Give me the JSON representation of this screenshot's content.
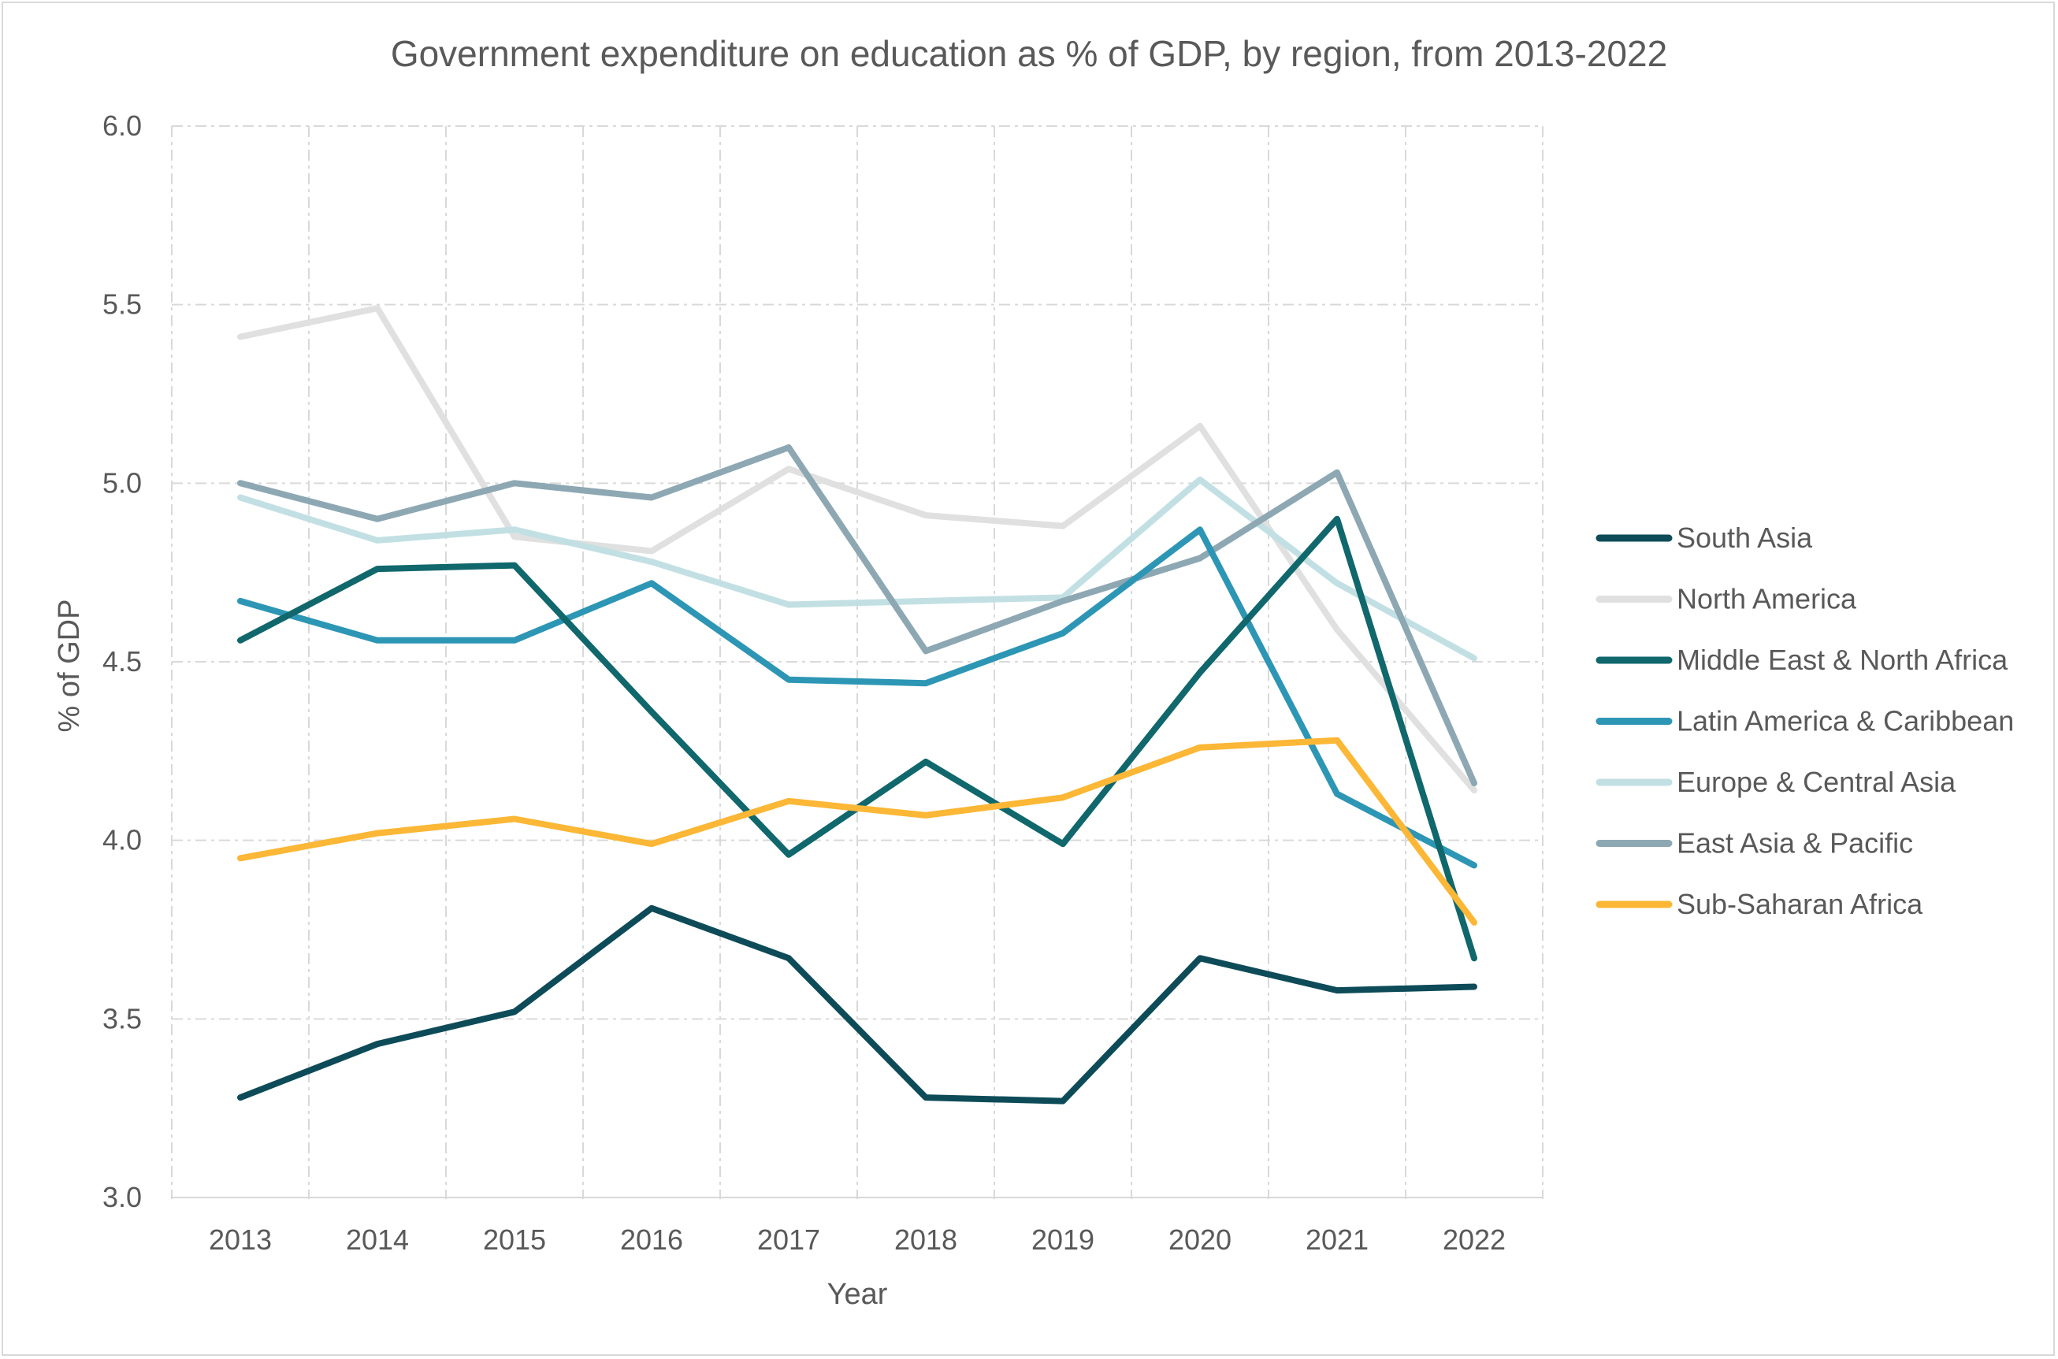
{
  "chart_data": {
    "type": "line",
    "title": "Government expenditure on education as % of GDP, by region, from 2013-2022",
    "xlabel": "Year",
    "ylabel": "% of GDP",
    "ylim": [
      3.0,
      6.0
    ],
    "yticks": [
      "3.0",
      "3.5",
      "4.0",
      "4.5",
      "5.0",
      "5.5",
      "6.0"
    ],
    "categories": [
      "2013",
      "2014",
      "2015",
      "2016",
      "2017",
      "2018",
      "2019",
      "2020",
      "2021",
      "2022"
    ],
    "grid": true,
    "legend_position": "right",
    "series": [
      {
        "name": "North America",
        "color": "#e0e0e0",
        "values": [
          5.41,
          5.49,
          4.85,
          4.81,
          5.04,
          4.91,
          4.88,
          5.16,
          4.59,
          4.14
        ]
      },
      {
        "name": "Europe & Central Asia",
        "color": "#c2e0e3",
        "values": [
          4.96,
          4.84,
          4.87,
          4.78,
          4.66,
          4.67,
          4.68,
          5.01,
          4.72,
          4.51
        ]
      },
      {
        "name": "East Asia & Pacific",
        "color": "#8da8b3",
        "values": [
          5.0,
          4.9,
          5.0,
          4.96,
          5.1,
          4.53,
          4.67,
          4.79,
          5.03,
          4.16
        ]
      },
      {
        "name": "Latin America & Caribbean",
        "color": "#2d96b5",
        "values": [
          4.67,
          4.56,
          4.56,
          4.72,
          4.45,
          4.44,
          4.58,
          4.87,
          4.13,
          3.93
        ]
      },
      {
        "name": "Middle East & North Africa",
        "color": "#10676c",
        "values": [
          4.56,
          4.76,
          4.77,
          4.36,
          3.96,
          4.22,
          3.99,
          4.47,
          4.9,
          3.67
        ]
      },
      {
        "name": "Sub-Saharan Africa",
        "color": "#fbb735",
        "values": [
          3.95,
          4.02,
          4.06,
          3.99,
          4.11,
          4.07,
          4.12,
          4.26,
          4.28,
          3.77
        ]
      },
      {
        "name": "South Asia",
        "color": "#0e4b58",
        "values": [
          3.28,
          3.43,
          3.52,
          3.81,
          3.67,
          3.28,
          3.27,
          3.67,
          3.58,
          3.59
        ]
      }
    ],
    "legend_order": [
      "South Asia",
      "North America",
      "Middle East & North Africa",
      "Latin America & Caribbean",
      "Europe & Central Asia",
      "East Asia & Pacific",
      "Sub-Saharan Africa"
    ]
  }
}
